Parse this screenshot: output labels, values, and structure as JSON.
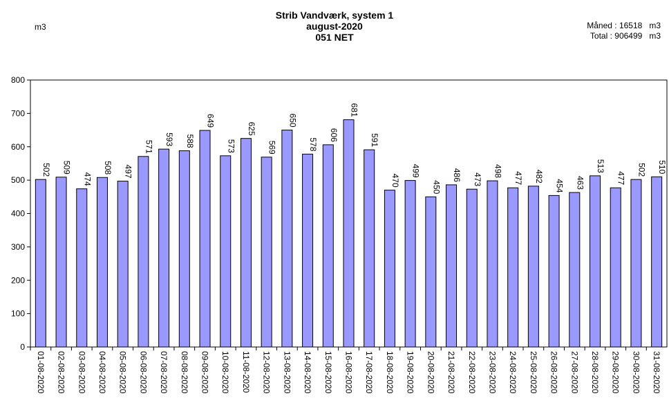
{
  "header": {
    "title_line1": "Strib Vandværk, system 1",
    "title_line2": "august-2020",
    "title_line3": "051 NET",
    "unit_label": "m3",
    "month_label": "Måned :",
    "month_value": "16518",
    "month_unit": "m3",
    "total_label": "Total :",
    "total_value": "906499",
    "total_unit": "m3"
  },
  "chart_data": {
    "type": "bar",
    "ylabel": "m3",
    "ylim": [
      0,
      800
    ],
    "yticks": [
      0,
      100,
      200,
      300,
      400,
      500,
      600,
      700,
      800
    ],
    "bar_color": "#9999ff",
    "categories": [
      "01-08-2020",
      "02-08-2020",
      "03-08-2020",
      "04-08-2020",
      "05-08-2020",
      "06-08-2020",
      "07-08-2020",
      "08-08-2020",
      "09-08-2020",
      "10-08-2020",
      "11-08-2020",
      "12-08-2020",
      "13-08-2020",
      "14-08-2020",
      "15-08-2020",
      "16-08-2020",
      "17-08-2020",
      "18-08-2020",
      "19-08-2020",
      "20-08-2020",
      "21-08-2020",
      "22-08-2020",
      "23-08-2020",
      "24-08-2020",
      "25-08-2020",
      "26-08-2020",
      "27-08-2020",
      "28-08-2020",
      "29-08-2020",
      "30-08-2020",
      "31-08-2020"
    ],
    "values": [
      502,
      509,
      474,
      508,
      497,
      571,
      593,
      588,
      649,
      573,
      625,
      569,
      650,
      578,
      606,
      681,
      591,
      470,
      499,
      450,
      486,
      473,
      498,
      477,
      482,
      454,
      463,
      513,
      477,
      502,
      510
    ]
  }
}
